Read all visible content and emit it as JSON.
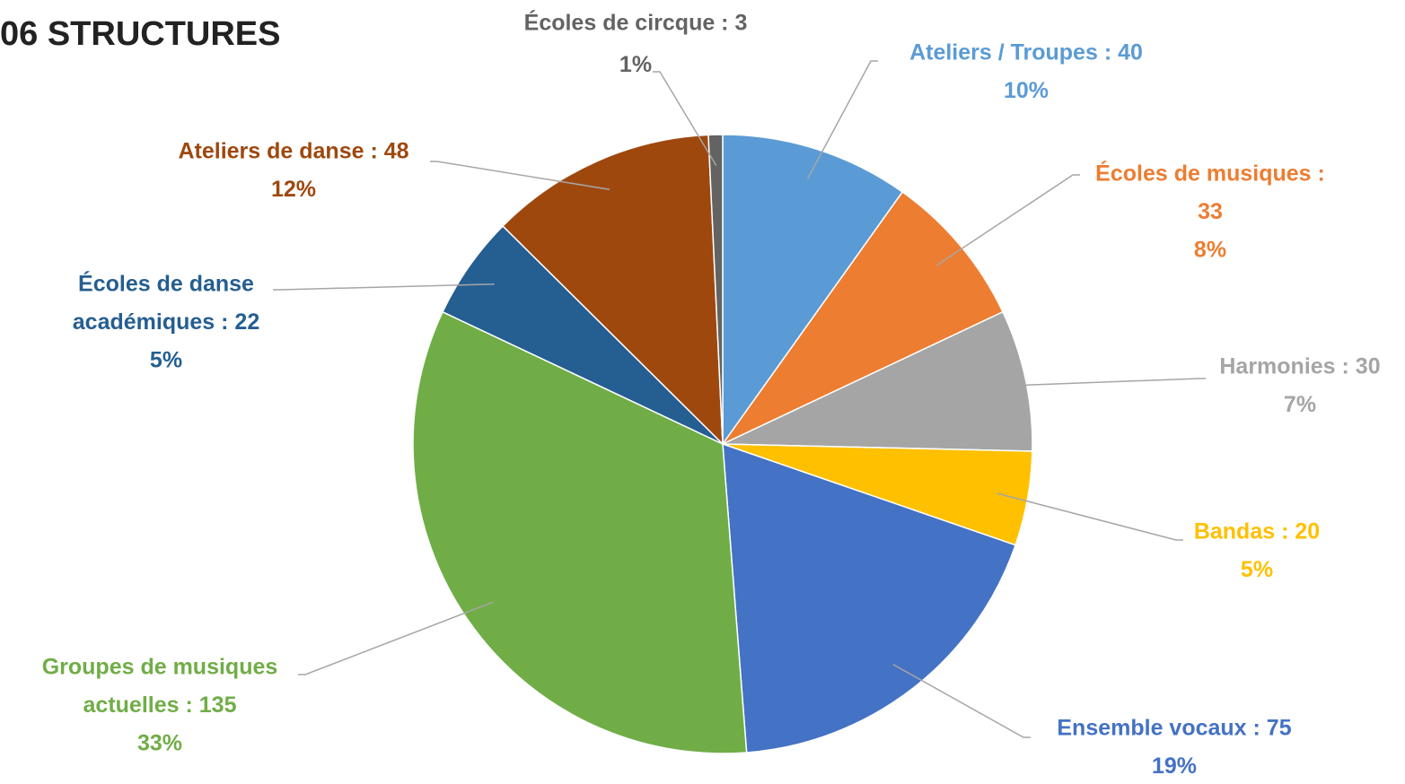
{
  "chart_data": {
    "type": "pie",
    "title": "06 STRUCTURES",
    "values": [
      40,
      33,
      30,
      20,
      75,
      135,
      22,
      48,
      3
    ],
    "value_labels": [
      [
        "Ateliers / Troupes : 40"
      ],
      [
        "Écoles de musiques :",
        "33"
      ],
      [
        "Harmonies : 30"
      ],
      [
        "Bandas : 20"
      ],
      [
        "Ensemble vocaux : 75"
      ],
      [
        "Groupes de musiques",
        "actuelles : 135"
      ],
      [
        "Écoles de danse",
        "académiques : 22"
      ],
      [
        "Ateliers de danse : 48"
      ],
      [
        "Écoles de circque : 3"
      ]
    ],
    "percent_labels": [
      "10%",
      "8%",
      "7%",
      "5%",
      "19%",
      "33%",
      "5%",
      "12%",
      "1%"
    ],
    "colors": [
      "#5b9bd5",
      "#ed7d31",
      "#a5a5a5",
      "#ffc000",
      "#4472c4",
      "#70ad47",
      "#255e91",
      "#9e480e",
      "#636363"
    ]
  }
}
